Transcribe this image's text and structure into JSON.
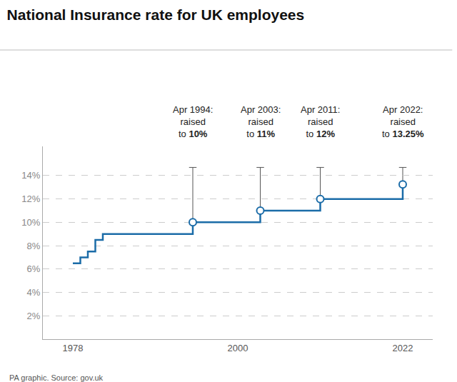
{
  "chart_data": {
    "type": "line",
    "title": "National Insurance rate for UK employees",
    "source": "PA graphic. Source: gov.uk",
    "series": [
      {
        "type": "line",
        "color": "#1b6ca8",
        "x": [
          1978,
          1979,
          1979,
          1980,
          1980,
          1981,
          1981,
          1982,
          1982,
          1994,
          1994,
          2003,
          2003,
          2011,
          2011,
          2022,
          2022
        ],
        "values": [
          6.5,
          6.5,
          7.0,
          7.0,
          7.5,
          7.5,
          8.5,
          8.5,
          9.0,
          9.0,
          10.0,
          10.0,
          11.0,
          11.0,
          12.0,
          12.0,
          13.25
        ]
      },
      {
        "type": "scatter",
        "marker": "circle",
        "color": "#1b6ca8",
        "x": [
          1994,
          2003,
          2011,
          2022
        ],
        "values": [
          10.0,
          11.0,
          12.0,
          13.25
        ]
      }
    ],
    "annotations": [
      {
        "x": 1994,
        "lines": [
          "Apr 1994:",
          "raised",
          "to "
        ],
        "bold": "10%",
        "color": "#555555"
      },
      {
        "x": 2003,
        "lines": [
          "Apr 2003:",
          "raised",
          "to "
        ],
        "bold": "11%",
        "color": "#555555"
      },
      {
        "x": 2011,
        "lines": [
          "Apr 2011:",
          "raised",
          "to "
        ],
        "bold": "12%",
        "color": "#555555"
      },
      {
        "x": 2022,
        "lines": [
          "Apr 2022:",
          "raised",
          "to "
        ],
        "bold": "13.25%",
        "color": "#555555"
      }
    ],
    "annotation_line_top": 14.7,
    "xlim": [
      1974,
      2026
    ],
    "ylim": [
      0,
      16.5
    ],
    "xticks": [
      1978,
      2000,
      2022
    ],
    "yticks": [
      {
        "value": 2,
        "label": "2%"
      },
      {
        "value": 4,
        "label": "4%"
      },
      {
        "value": 6,
        "label": "6%"
      },
      {
        "value": 8,
        "label": "8%"
      },
      {
        "value": 10,
        "label": "10%"
      },
      {
        "value": 12,
        "label": "12%"
      },
      {
        "value": 14,
        "label": "14%"
      }
    ],
    "grid": true
  }
}
